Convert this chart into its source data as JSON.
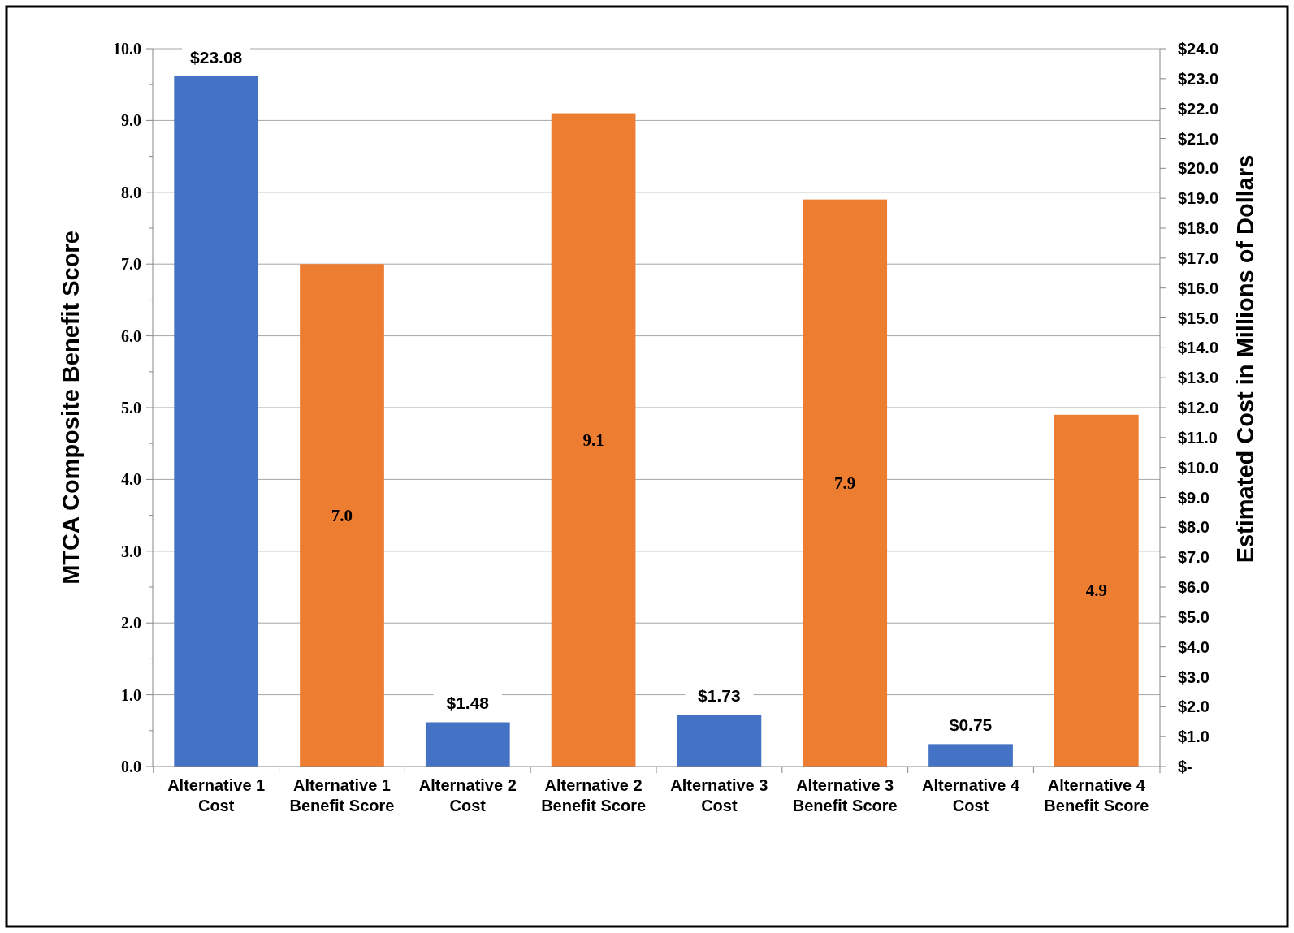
{
  "chart_data": {
    "type": "bar",
    "ylabel": "MTCA Composite Benefit Score",
    "y2label": "Estimated Cost in Millions of Dollars",
    "categories": [
      "Alternative 1 Cost",
      "Alternative 1 Benefit Score",
      "Alternative 2 Cost",
      "Alternative 2 Benefit Score",
      "Alternative 3 Cost",
      "Alternative 3 Benefit Score",
      "Alternative 4 Cost",
      "Alternative 4 Benefit Score"
    ],
    "series": [
      {
        "color": "#4472c4",
        "axis": "y2",
        "values": [
          23.08,
          null,
          1.48,
          null,
          1.73,
          null,
          0.75,
          null
        ],
        "value_labels": [
          "$23.08",
          null,
          "$1.48",
          null,
          "$1.73",
          null,
          "$0.75",
          null
        ]
      },
      {
        "color": "#ed7d31",
        "axis": "y",
        "values": [
          null,
          7.0,
          null,
          9.1,
          null,
          7.9,
          null,
          4.9
        ],
        "value_labels": [
          null,
          "7.0",
          null,
          "9.1",
          null,
          "7.9",
          null,
          "4.9"
        ]
      }
    ],
    "ylim": [
      0,
      10
    ],
    "yticks": [
      {
        "value": 0,
        "label": "0.0"
      },
      {
        "value": 0.5,
        "label": null
      },
      {
        "value": 1,
        "label": "1.0"
      },
      {
        "value": 1.5,
        "label": null
      },
      {
        "value": 2,
        "label": "2.0"
      },
      {
        "value": 2.5,
        "label": null
      },
      {
        "value": 3,
        "label": "3.0"
      },
      {
        "value": 3.5,
        "label": null
      },
      {
        "value": 4,
        "label": "4.0"
      },
      {
        "value": 4.5,
        "label": null
      },
      {
        "value": 5,
        "label": "5.0"
      },
      {
        "value": 5.5,
        "label": null
      },
      {
        "value": 6,
        "label": "6.0"
      },
      {
        "value": 6.5,
        "label": null
      },
      {
        "value": 7,
        "label": "7.0"
      },
      {
        "value": 7.5,
        "label": null
      },
      {
        "value": 8,
        "label": "8.0"
      },
      {
        "value": 8.5,
        "label": null
      },
      {
        "value": 9,
        "label": "9.0"
      },
      {
        "value": 9.5,
        "label": null
      },
      {
        "value": 10,
        "label": "10.0"
      }
    ],
    "y2lim": [
      0,
      24
    ],
    "y2ticks": [
      {
        "value": 0,
        "label": "$-"
      },
      {
        "value": 1,
        "label": "$1.0"
      },
      {
        "value": 2,
        "label": "$2.0"
      },
      {
        "value": 3,
        "label": "$3.0"
      },
      {
        "value": 4,
        "label": "$4.0"
      },
      {
        "value": 5,
        "label": "$5.0"
      },
      {
        "value": 6,
        "label": "$6.0"
      },
      {
        "value": 7,
        "label": "$7.0"
      },
      {
        "value": 8,
        "label": "$8.0"
      },
      {
        "value": 9,
        "label": "$9.0"
      },
      {
        "value": 10,
        "label": "$10.0"
      },
      {
        "value": 11,
        "label": "$11.0"
      },
      {
        "value": 12,
        "label": "$12.0"
      },
      {
        "value": 13,
        "label": "$13.0"
      },
      {
        "value": 14,
        "label": "$14.0"
      },
      {
        "value": 15,
        "label": "$15.0"
      },
      {
        "value": 16,
        "label": "$16.0"
      },
      {
        "value": 17,
        "label": "$17.0"
      },
      {
        "value": 18,
        "label": "$18.0"
      },
      {
        "value": 19,
        "label": "$19.0"
      },
      {
        "value": 20,
        "label": "$20.0"
      },
      {
        "value": 21,
        "label": "$21.0"
      },
      {
        "value": 22,
        "label": "$22.0"
      },
      {
        "value": 23,
        "label": "$23.0"
      },
      {
        "value": 24,
        "label": "$24.0"
      }
    ],
    "grid": "y"
  }
}
